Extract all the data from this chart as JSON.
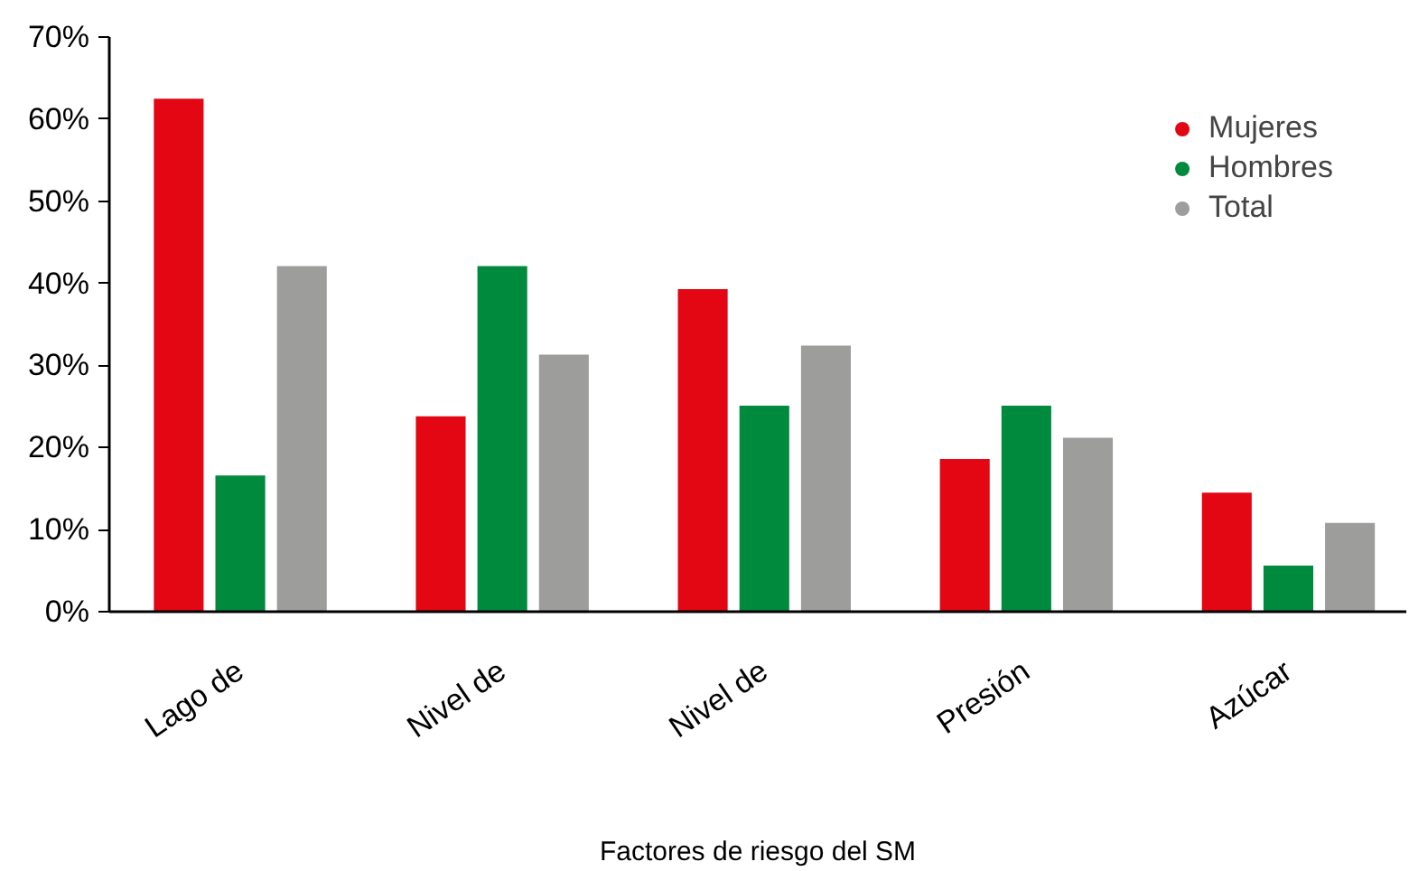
{
  "chart_data": {
    "type": "bar",
    "xlabel": "Factores de riesgo del SM",
    "categories": [
      "Lago de",
      "Nivel de",
      "Nivel de",
      "Presión",
      "Azúcar"
    ],
    "series": [
      {
        "name": "Mujeres",
        "color": "#e30613",
        "values": [
          62.5,
          23.8,
          39.3,
          18.6,
          14.5
        ]
      },
      {
        "name": "Hombres",
        "color": "#008a3e",
        "values": [
          16.6,
          42.1,
          25.1,
          25.1,
          5.6
        ]
      },
      {
        "name": "Total",
        "color": "#9d9d9c",
        "values": [
          42.1,
          31.3,
          32.4,
          21.2,
          10.8
        ]
      }
    ],
    "ylim": [
      0,
      70
    ],
    "yticks": [
      {
        "value": 0,
        "label": "0%"
      },
      {
        "value": 10,
        "label": "10%"
      },
      {
        "value": 20,
        "label": "20%"
      },
      {
        "value": 30,
        "label": "30%"
      },
      {
        "value": 40,
        "label": "40%"
      },
      {
        "value": 50,
        "label": "50%"
      },
      {
        "value": 60,
        "label": "60%"
      },
      {
        "value": 70,
        "label": "70%"
      }
    ],
    "grid": false,
    "legend": "top right",
    "marker": "circle"
  }
}
